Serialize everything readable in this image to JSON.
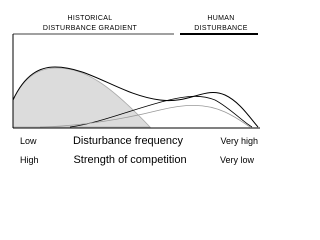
{
  "header": {
    "historical": [
      "HISTORICAL",
      "DISTURBANCE GRADIENT"
    ],
    "human": [
      "HUMAN",
      "DISTURBANCE"
    ]
  },
  "axis_rows": [
    {
      "left": "Low",
      "label": "Disturbance frequency",
      "right": "Very high"
    },
    {
      "left": "High",
      "label": "Strength of competition",
      "right": "Very low"
    }
  ]
}
